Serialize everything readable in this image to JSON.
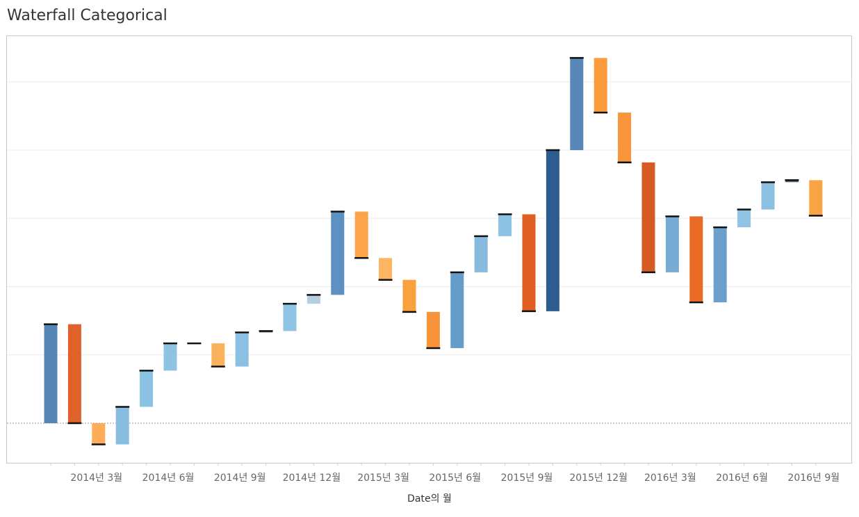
{
  "page": {
    "title": "Waterfall Categorical"
  },
  "chart_data": {
    "type": "bar",
    "subtype": "waterfall",
    "title": "Waterfall Categorical",
    "xlabel": "Date의 월",
    "ylabel": "",
    "y_tick_labels_shown": false,
    "gridlines": true,
    "tick_labels": [
      "2014년 3월",
      "2014년 6월",
      "2014년 9월",
      "2014년 12월",
      "2015년 3월",
      "2015년 6월",
      "2015년 9월",
      "2015년 12월",
      "2016년 3월",
      "2016년 6월",
      "2016년 9월"
    ],
    "tick_months": [
      2,
      5,
      8,
      11,
      14,
      17,
      20,
      23,
      26,
      29,
      32
    ],
    "baseline": 0,
    "ylim": [
      -0.58,
      5.67
    ],
    "months": [
      0,
      1,
      2,
      3,
      4,
      5,
      6,
      7,
      8,
      9,
      10,
      11,
      12,
      13,
      14,
      15,
      16,
      17,
      18,
      19,
      20,
      21,
      22,
      23,
      24,
      25,
      26,
      27,
      28,
      29,
      30,
      31,
      32
    ],
    "start": [
      0.0,
      1.45,
      0.0,
      -0.31,
      0.24,
      0.77,
      1.17,
      1.17,
      0.83,
      1.33,
      1.35,
      1.75,
      1.88,
      3.1,
      2.42,
      2.1,
      1.63,
      1.1,
      2.21,
      2.74,
      3.06,
      1.64,
      4.0,
      5.35,
      4.55,
      3.82,
      2.21,
      3.03,
      1.77,
      2.87,
      3.13,
      3.53,
      3.56
    ],
    "end": [
      1.45,
      0.0,
      -0.31,
      0.24,
      0.77,
      1.17,
      1.17,
      0.83,
      1.33,
      1.35,
      1.75,
      1.88,
      3.1,
      2.42,
      2.1,
      1.63,
      1.1,
      2.21,
      2.74,
      3.06,
      1.64,
      4.0,
      5.35,
      4.55,
      3.82,
      2.21,
      3.03,
      1.77,
      2.87,
      3.13,
      3.53,
      3.56,
      3.04
    ],
    "colors": [
      "#5686b6",
      "#e0622a",
      "#fdad59",
      "#88bde0",
      "#8bc1e2",
      "#8ec3e4",
      "#5b6e87",
      "#fbb25f",
      "#8bc0e2",
      "#5b6e87",
      "#8fc4e4",
      "#b5cfde",
      "#5d91c2",
      "#fba449",
      "#fdb562",
      "#f9a13d",
      "#f8953a",
      "#659cc9",
      "#87bbdd",
      "#8cc2e3",
      "#e15e22",
      "#2d5d8e",
      "#5888b8",
      "#fa9c3b",
      "#f9953b",
      "#d65a24",
      "#76acd4",
      "#e96b25",
      "#6ca0cc",
      "#8fc4e4",
      "#8cc1e2",
      "#5b6e87",
      "#faa345"
    ]
  }
}
